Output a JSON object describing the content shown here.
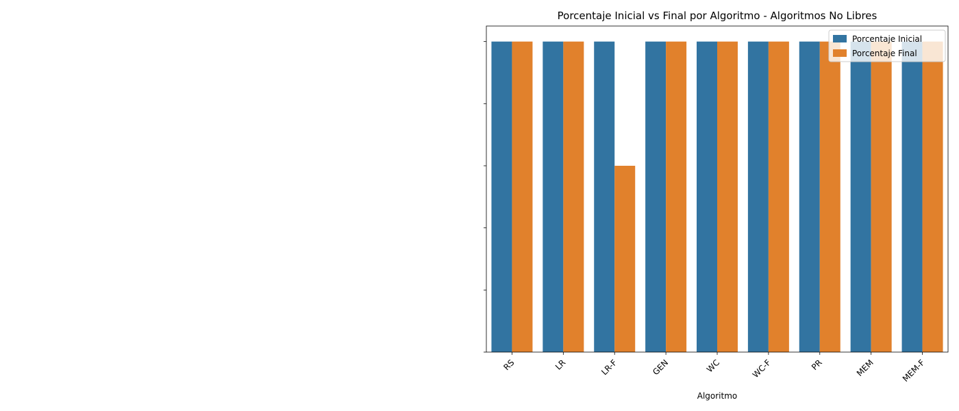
{
  "chart_data": {
    "type": "bar",
    "title": "Porcentaje Inicial vs Final por Algoritmo - Algoritmos No Libres",
    "xlabel": "Algoritmo",
    "ylabel": "",
    "categories": [
      "RS",
      "LR",
      "LR-F",
      "GEN",
      "WC",
      "WC-F",
      "PR",
      "MEM",
      "MEM-F"
    ],
    "series": [
      {
        "name": "Porcentaje Inicial",
        "color": "#3274a1",
        "values": [
          100,
          100,
          100,
          100,
          100,
          100,
          100,
          100,
          100
        ]
      },
      {
        "name": "Porcentaje Final",
        "color": "#e1812c",
        "values": [
          100,
          100,
          60,
          100,
          100,
          100,
          100,
          100,
          100
        ]
      }
    ],
    "ylim": [
      0,
      105
    ],
    "y_ticks": [
      0,
      20,
      40,
      60,
      80,
      100
    ],
    "y_tick_labels_visible": false,
    "legend": {
      "position": "top-right"
    },
    "grid": false
  }
}
